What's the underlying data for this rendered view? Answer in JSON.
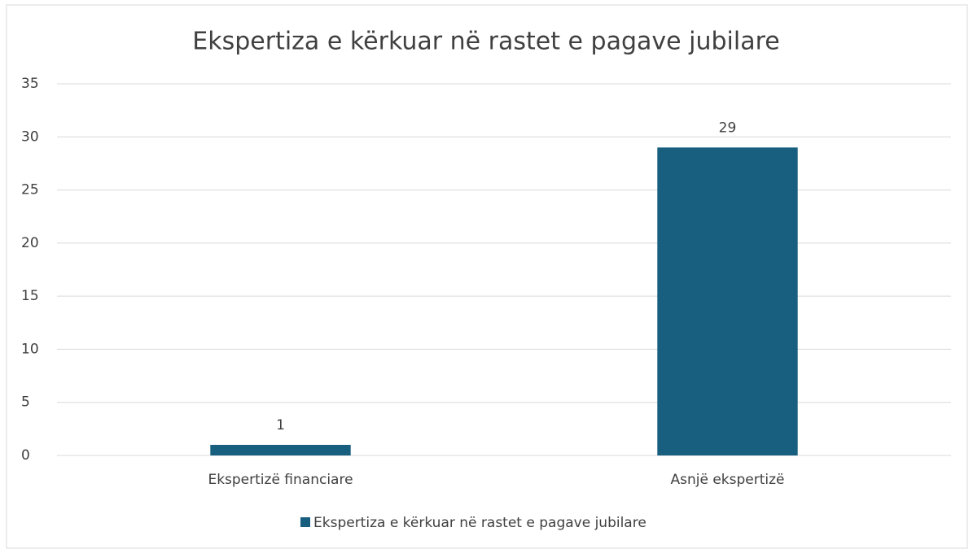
{
  "chart_data": {
    "type": "bar",
    "title": "Ekspertiza e kërkuar në rastet e pagave jubilare",
    "categories": [
      "Ekspertizë financiare",
      "Asnjë ekspertizë"
    ],
    "series": [
      {
        "name": "Ekspertiza e kërkuar në rastet e pagave jubilare",
        "color": "#175e7f",
        "values": [
          1,
          29
        ]
      }
    ],
    "ylim": [
      0,
      35
    ],
    "yticks": [
      0,
      5,
      10,
      15,
      20,
      25,
      30,
      35
    ],
    "grid": true,
    "legend": "bottom",
    "data_labels": true
  }
}
